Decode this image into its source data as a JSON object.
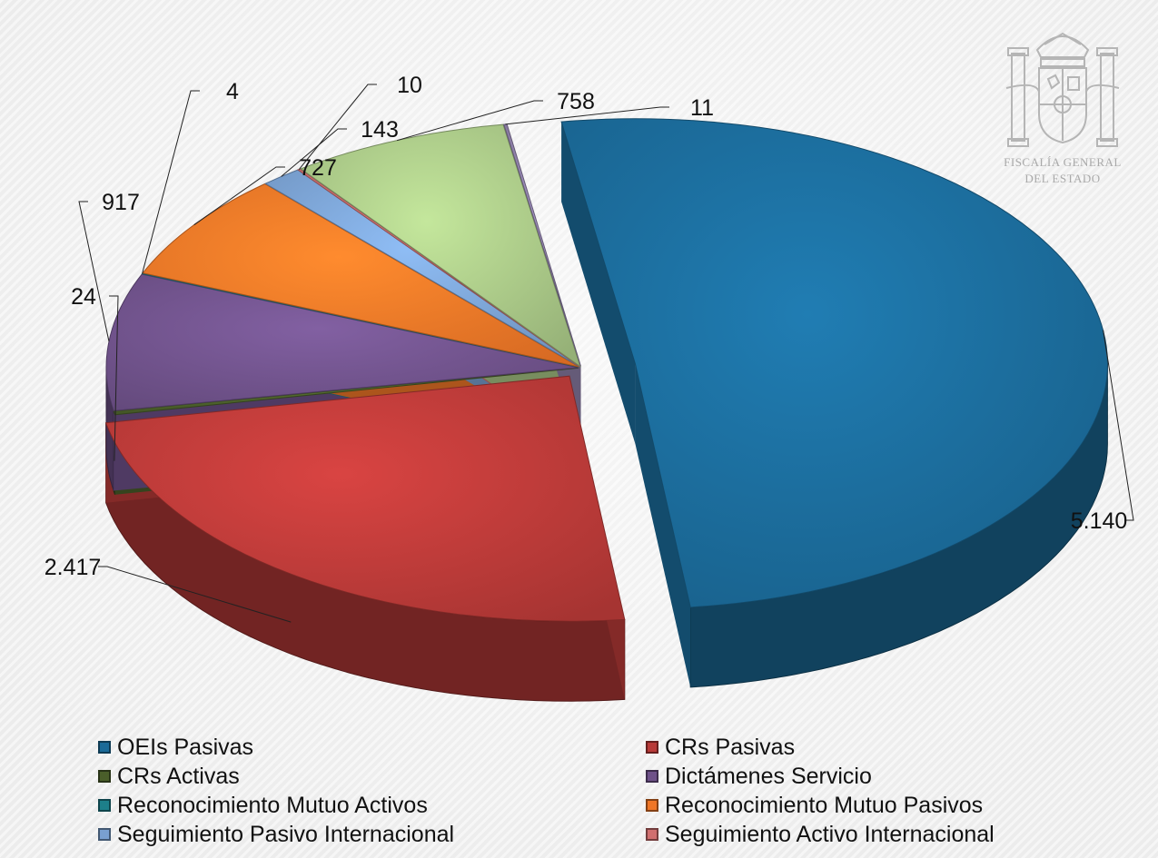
{
  "chart_data": {
    "type": "pie",
    "title": "",
    "slices": [
      {
        "label": "OEIs Pasivas",
        "value": 5140,
        "display": "5.140",
        "color": "#1b6a98"
      },
      {
        "label": "CRs Pasivas",
        "value": 2417,
        "display": "2.417",
        "color": "#b83a38"
      },
      {
        "label": "CRs Activas",
        "value": 24,
        "display": "24",
        "color": "#4a5e2a"
      },
      {
        "label": "Dictámenes Servicio",
        "value": 917,
        "display": "917",
        "color": "#6e5189"
      },
      {
        "label": "Reconocimiento Mutuo Activos",
        "value": 4,
        "display": "4",
        "color": "#1d7f8a"
      },
      {
        "label": "Reconocimiento Mutuo Pasivos",
        "value": 727,
        "display": "727",
        "color": "#ef7627"
      },
      {
        "label": "Seguimiento Pasivo Internacional",
        "value": 143,
        "display": "143",
        "color": "#79a0d0"
      },
      {
        "label": "Seguimiento Activo Internacional",
        "value": 10,
        "display": "10",
        "color": "#d07070"
      },
      {
        "label": "",
        "value": 758,
        "display": "758",
        "color": "#a6c484"
      },
      {
        "label": "",
        "value": 11,
        "display": "11",
        "color": "#8c7ea6"
      }
    ],
    "legend_position": "bottom",
    "legend_columns": 2
  },
  "watermark": {
    "line1": "FISCALÍA GENERAL",
    "line2": "DEL ESTADO"
  }
}
